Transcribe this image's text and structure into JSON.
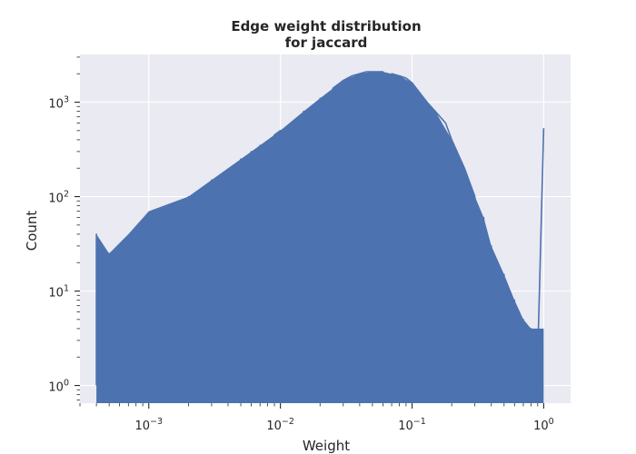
{
  "chart_data": {
    "type": "line",
    "title": [
      "Edge weight distribution",
      "for jaccard"
    ],
    "xlabel": "Weight",
    "ylabel": "Count",
    "xscale": "log",
    "yscale": "log",
    "xlim": [
      0.0003,
      1.6
    ],
    "ylim": [
      0.65,
      3200
    ],
    "grid": true,
    "legend": "none",
    "x_ticks": [
      {
        "value": 0.001,
        "base": "10",
        "exp": "−3"
      },
      {
        "value": 0.01,
        "base": "10",
        "exp": "−2"
      },
      {
        "value": 0.1,
        "base": "10",
        "exp": "−1"
      },
      {
        "value": 1,
        "base": "10",
        "exp": "0"
      }
    ],
    "y_ticks": [
      {
        "value": 1,
        "base": "10",
        "exp": "0"
      },
      {
        "value": 10,
        "base": "10",
        "exp": "1"
      },
      {
        "value": 100,
        "base": "10",
        "exp": "2"
      },
      {
        "value": 1000,
        "base": "10",
        "exp": "3"
      }
    ],
    "series": [
      {
        "color": "#4c72b0",
        "envelope": {
          "x": [
            0.0004,
            0.0005,
            0.0007,
            0.001,
            0.002,
            0.003,
            0.005,
            0.007,
            0.01,
            0.015,
            0.02,
            0.03,
            0.04,
            0.05,
            0.06,
            0.08,
            0.1,
            0.13,
            0.15,
            0.2,
            0.25,
            0.3,
            0.35,
            0.4,
            0.5,
            0.6,
            0.7,
            0.8,
            1.0
          ],
          "y": [
            40,
            25,
            40,
            70,
            100,
            150,
            250,
            350,
            500,
            800,
            1100,
            1700,
            2000,
            2100,
            2100,
            1900,
            1600,
            1000,
            800,
            400,
            200,
            100,
            60,
            30,
            15,
            8,
            5,
            4,
            4
          ]
        },
        "points": [
          [
            0.0004,
            1
          ],
          [
            0.0004,
            40
          ],
          [
            0.00045,
            1
          ],
          [
            0.0005,
            25
          ],
          [
            0.00052,
            1
          ],
          [
            0.00058,
            22
          ],
          [
            0.00062,
            1
          ],
          [
            0.00068,
            30
          ],
          [
            0.00073,
            1
          ],
          [
            0.0008,
            40
          ],
          [
            0.00085,
            1
          ],
          [
            0.0009,
            45
          ],
          [
            0.00095,
            1
          ],
          [
            0.001,
            60
          ],
          [
            0.0011,
            1
          ],
          [
            0.0012,
            70
          ],
          [
            0.0013,
            1
          ],
          [
            0.0015,
            80
          ],
          [
            0.0017,
            1
          ],
          [
            0.002,
            100
          ],
          [
            0.0022,
            1
          ],
          [
            0.0025,
            120
          ],
          [
            0.0028,
            1
          ],
          [
            0.003,
            150
          ],
          [
            0.0033,
            1
          ],
          [
            0.0037,
            180
          ],
          [
            0.0042,
            1
          ],
          [
            0.005,
            250
          ],
          [
            0.0055,
            1
          ],
          [
            0.006,
            300
          ],
          [
            0.0065,
            1
          ],
          [
            0.007,
            350
          ],
          [
            0.008,
            1
          ],
          [
            0.009,
            450
          ],
          [
            0.01,
            500
          ],
          [
            0.011,
            1
          ],
          [
            0.015,
            800
          ],
          [
            0.0165,
            1
          ],
          [
            0.02,
            1100
          ],
          [
            0.022,
            1
          ],
          [
            0.025,
            1400
          ],
          [
            0.03,
            1700
          ],
          [
            0.035,
            1900
          ],
          [
            0.04,
            2000
          ],
          [
            0.045,
            2100
          ],
          [
            0.05,
            2100
          ],
          [
            0.06,
            2100
          ],
          [
            0.065,
            1
          ],
          [
            0.07,
            2000
          ],
          [
            0.08,
            1900
          ],
          [
            0.09,
            1800
          ],
          [
            0.1,
            1600
          ],
          [
            0.13,
            1000
          ],
          [
            0.15,
            800
          ],
          [
            0.18,
            600
          ],
          [
            0.2,
            400
          ],
          [
            0.25,
            200
          ],
          [
            0.3,
            100
          ],
          [
            0.33,
            5
          ],
          [
            0.35,
            60
          ],
          [
            0.37,
            3
          ],
          [
            0.4,
            30
          ],
          [
            0.42,
            2
          ],
          [
            0.45,
            20
          ],
          [
            0.47,
            1
          ],
          [
            0.5,
            15
          ],
          [
            0.53,
            1
          ],
          [
            0.55,
            10
          ],
          [
            0.58,
            1
          ],
          [
            0.6,
            8
          ],
          [
            0.63,
            1
          ],
          [
            0.65,
            6
          ],
          [
            0.68,
            1
          ],
          [
            0.7,
            5
          ],
          [
            0.73,
            1
          ],
          [
            0.75,
            4
          ],
          [
            0.78,
            1
          ],
          [
            0.8,
            4
          ],
          [
            0.9,
            2
          ],
          [
            1.0,
            530
          ]
        ]
      }
    ]
  }
}
